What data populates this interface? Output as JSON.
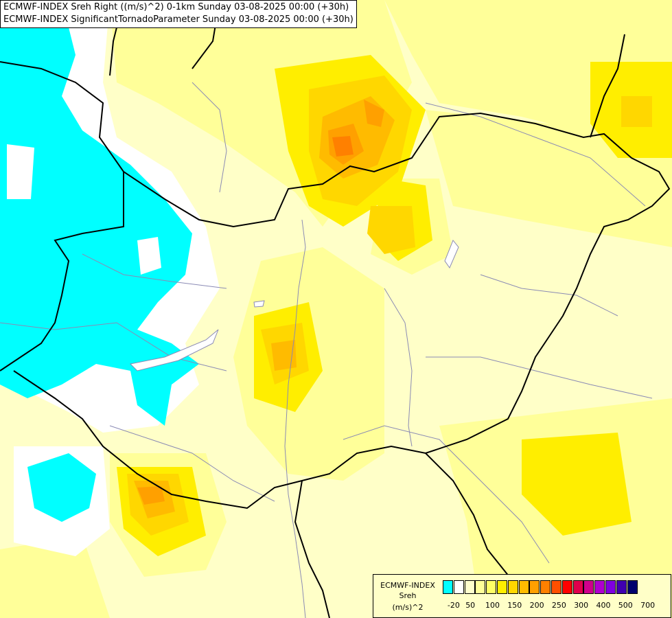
{
  "title": {
    "line1": "ECMWF-INDEX Sreh Right ((m/s)^2) 0-1km Sunday 03-08-2025 00:00 (+30h)",
    "line2": "ECMWF-INDEX SignificantTornadoParameter Sunday 03-08-2025 00:00 (+30h)"
  },
  "legend": {
    "model": "ECMWF-INDEX",
    "parameter": "Sreh",
    "unit": "(m/s)^2",
    "colors": [
      "#00ffff",
      "#ffffff",
      "#ffffcc",
      "#ffff99",
      "#ffff66",
      "#ffee00",
      "#ffd700",
      "#ffbb00",
      "#ffa000",
      "#ff8000",
      "#ff5000",
      "#ff0000",
      "#e0004c",
      "#d0008c",
      "#b000d0",
      "#8000e0",
      "#4000b0",
      "#00006e"
    ],
    "ticks": [
      "-20",
      "50",
      "100",
      "150",
      "200",
      "250",
      "300",
      "400",
      "500",
      "700"
    ]
  },
  "colors": {
    "low_negative": "#00ffff",
    "background_yellow": "#ffffc8",
    "max_orange": "#ff8000"
  }
}
